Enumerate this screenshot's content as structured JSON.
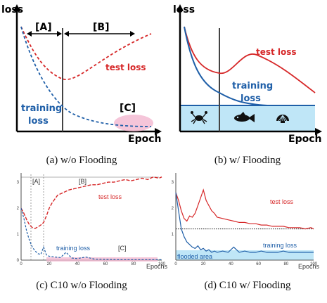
{
  "chart_data": [
    {
      "id": "a",
      "type": "line",
      "caption": "(a) w/o Flooding",
      "ylabel": "loss",
      "xlabel": "Epoch",
      "regions": [
        "[A]",
        "[B]",
        "[C]"
      ],
      "series": [
        {
          "name": "test loss",
          "color": "#d62728",
          "style": "dashed"
        },
        {
          "name": "training loss",
          "color": "#1f5fa8",
          "style": "dashed"
        }
      ]
    },
    {
      "id": "b",
      "type": "line",
      "caption": "(b) w/ Flooding",
      "ylabel": "loss",
      "xlabel": "Epoch",
      "series": [
        {
          "name": "test loss",
          "color": "#d62728",
          "style": "solid"
        },
        {
          "name": "training loss",
          "color": "#1f5fa8",
          "style": "solid"
        }
      ],
      "flood_icons": [
        "crab-icon",
        "fish-icon",
        "shell-icon"
      ]
    },
    {
      "id": "c",
      "type": "line",
      "caption": "(c) C10 w/o Flooding",
      "xlabel": "Epochs",
      "xlim": [
        0,
        100
      ],
      "ylim": [
        0,
        3.3
      ],
      "xticks": [
        "0",
        "20",
        "40",
        "60",
        "80",
        "100"
      ],
      "yticks": [
        "0",
        "1",
        "2",
        "3"
      ],
      "regions": [
        "[A]",
        "[B]",
        "[C]"
      ],
      "region_bounds": [
        7,
        16
      ],
      "series": [
        {
          "name": "test loss",
          "color": "#d62728",
          "x": [
            0,
            2,
            4,
            6,
            8,
            10,
            12,
            14,
            16,
            18,
            20,
            22,
            24,
            26,
            28,
            30,
            34,
            38,
            42,
            46,
            50,
            54,
            58,
            62,
            66,
            70,
            74,
            78,
            82,
            86,
            90,
            94,
            98,
            100
          ],
          "y": [
            2.0,
            1.8,
            1.55,
            1.35,
            1.25,
            1.22,
            1.28,
            1.35,
            1.45,
            1.7,
            2.0,
            2.2,
            2.35,
            2.5,
            2.55,
            2.6,
            2.7,
            2.75,
            2.8,
            2.85,
            2.9,
            2.9,
            2.95,
            3.0,
            3.0,
            3.05,
            3.1,
            3.05,
            3.1,
            3.15,
            3.1,
            3.2,
            3.15,
            3.2
          ]
        },
        {
          "name": "training loss",
          "color": "#1f5fa8",
          "x": [
            0,
            2,
            4,
            6,
            8,
            10,
            12,
            14,
            16,
            18,
            20,
            24,
            28,
            32,
            36,
            40,
            46,
            52,
            60,
            70,
            80,
            90,
            100
          ],
          "y": [
            2.0,
            1.6,
            1.1,
            0.75,
            0.5,
            0.35,
            0.25,
            0.22,
            0.5,
            0.2,
            0.15,
            0.12,
            0.1,
            0.3,
            0.08,
            0.06,
            0.12,
            0.04,
            0.03,
            0.02,
            0.02,
            0.02,
            0.02
          ]
        }
      ]
    },
    {
      "id": "d",
      "type": "line",
      "caption": "(d) C10 w/ Flooding",
      "xlabel": "Epochs",
      "xlim": [
        0,
        100
      ],
      "ylim": [
        0,
        3.3
      ],
      "xticks": [
        "0",
        "20",
        "40",
        "60",
        "80",
        "100"
      ],
      "yticks": [
        "1",
        "2",
        "3"
      ],
      "flood_level": 1.2,
      "flood_label": "flooded area",
      "series": [
        {
          "name": "test loss",
          "color": "#d62728",
          "x": [
            0,
            2,
            4,
            6,
            8,
            10,
            12,
            14,
            16,
            18,
            20,
            22,
            24,
            26,
            28,
            30,
            34,
            38,
            42,
            46,
            50,
            54,
            58,
            62,
            66,
            70,
            74,
            78,
            82,
            86,
            90,
            94,
            98,
            100
          ],
          "y": [
            2.6,
            2.3,
            1.9,
            1.6,
            1.5,
            1.7,
            1.65,
            1.8,
            2.1,
            2.4,
            2.7,
            2.3,
            2.1,
            1.9,
            1.8,
            1.65,
            1.6,
            1.55,
            1.5,
            1.45,
            1.45,
            1.4,
            1.4,
            1.35,
            1.35,
            1.3,
            1.3,
            1.3,
            1.25,
            1.25,
            1.25,
            1.2,
            1.25,
            1.2
          ]
        },
        {
          "name": "training loss",
          "color": "#1f5fa8",
          "x": [
            0,
            2,
            4,
            6,
            8,
            10,
            12,
            14,
            16,
            18,
            20,
            22,
            24,
            26,
            28,
            30,
            34,
            38,
            42,
            46,
            50,
            54,
            58,
            62,
            66,
            70,
            74,
            78,
            82,
            86,
            90,
            94,
            98,
            100
          ],
          "y": [
            2.6,
            1.9,
            1.2,
            0.9,
            0.7,
            0.6,
            0.5,
            0.45,
            0.55,
            0.4,
            0.45,
            0.35,
            0.4,
            0.3,
            0.35,
            0.3,
            0.35,
            0.3,
            0.5,
            0.3,
            0.35,
            0.3,
            0.3,
            0.35,
            0.3,
            0.3,
            0.3,
            0.35,
            0.3,
            0.3,
            0.3,
            0.3,
            0.3,
            0.3
          ]
        }
      ]
    }
  ]
}
